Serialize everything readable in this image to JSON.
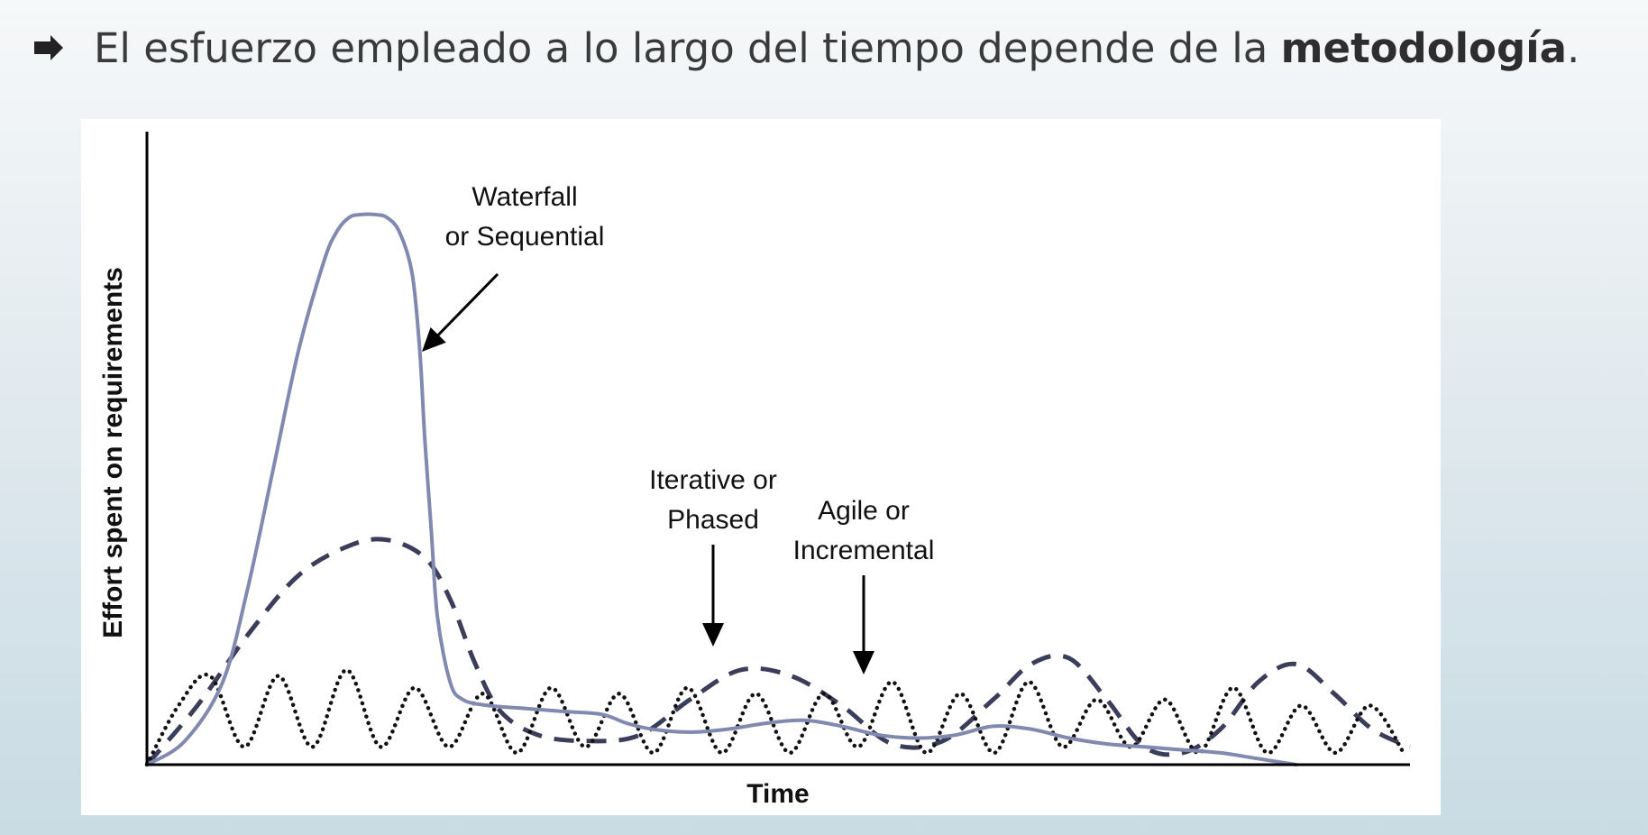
{
  "slide": {
    "bullet_icon": "arrow-bullet-icon",
    "bullet_text_prefix": "El esfuerzo empleado a lo largo del tiempo depende de la ",
    "bullet_text_bold": "metodología",
    "bullet_text_suffix": "."
  },
  "chart_data": {
    "type": "line",
    "title": "",
    "xlabel": "Time",
    "ylabel": "Effort spent on requirements",
    "xlim": [
      0,
      100
    ],
    "ylim": [
      0,
      100
    ],
    "grid": false,
    "legend": "none",
    "series": [
      {
        "name": "Waterfall or Sequential",
        "style": "solid",
        "color": "#8189b0",
        "x": [
          0,
          3,
          6,
          8,
          10,
          12,
          14,
          15,
          16,
          17,
          18,
          19,
          20,
          21,
          21.6,
          22,
          22.5,
          23,
          24,
          25,
          27,
          30,
          33,
          36,
          38,
          40,
          43,
          46,
          49,
          52,
          55,
          58,
          61,
          64,
          67,
          70,
          73,
          76,
          79,
          82,
          85,
          88,
          91
        ],
        "y": [
          0,
          4,
          14,
          30,
          50,
          70,
          85,
          90,
          92.5,
          93,
          93,
          92.5,
          90,
          83,
          70,
          55,
          40,
          25,
          14,
          11,
          10,
          9.5,
          9,
          8.5,
          7,
          6,
          5.5,
          6,
          7,
          7.5,
          6.5,
          5,
          4.5,
          5,
          6.5,
          6,
          4.5,
          3.5,
          3,
          2.5,
          2,
          1,
          0
        ]
      },
      {
        "name": "Iterative or Phased",
        "style": "dashed",
        "color": "#3a3e5a",
        "x": [
          0,
          4,
          8,
          12,
          16,
          19,
          22,
          24,
          26,
          28,
          31,
          35,
          39,
          43,
          47,
          51,
          55,
          59,
          63,
          67,
          70,
          73,
          76,
          79,
          82,
          85,
          88,
          91,
          94,
          97,
          100
        ],
        "y": [
          0,
          10,
          22,
          32,
          37,
          38,
          35,
          28,
          17,
          9,
          5,
          4,
          5,
          11,
          16,
          15,
          10,
          3.5,
          4,
          11,
          17,
          18,
          11,
          3,
          2,
          6,
          14,
          17,
          12,
          6,
          3
        ]
      },
      {
        "name": "Agile or Incremental",
        "style": "dotted",
        "color": "#111111",
        "x": [
          0,
          2.5,
          5,
          7.7,
          10.4,
          13.1,
          15.8,
          18.5,
          21.2,
          23.9,
          26.6,
          29.3,
          32,
          34.7,
          37.4,
          40.1,
          42.8,
          45.5,
          48.2,
          50.9,
          53.6,
          56.3,
          59,
          61.7,
          64.4,
          67.1,
          69.8,
          72.5,
          75.2,
          77.9,
          80.6,
          83.3,
          86,
          88.7,
          91.4,
          94.1,
          96.8,
          99.5
        ],
        "y": [
          0,
          10,
          15,
          3,
          15,
          3,
          16,
          3,
          13,
          3,
          12,
          2,
          13,
          3,
          12,
          2,
          13,
          2,
          12,
          2,
          12,
          3,
          14,
          2,
          12,
          2,
          14,
          3,
          11,
          3,
          11,
          2,
          13,
          2,
          10,
          2,
          10,
          2
        ]
      }
    ],
    "annotations": [
      {
        "lines": [
          "Waterfall",
          "or Sequential"
        ],
        "target_series": "Waterfall or Sequential"
      },
      {
        "lines": [
          "Iterative or",
          "Phased"
        ],
        "target_series": "Iterative or Phased"
      },
      {
        "lines": [
          "Agile or",
          "Incremental"
        ],
        "target_series": "Agile or Incremental"
      }
    ]
  }
}
